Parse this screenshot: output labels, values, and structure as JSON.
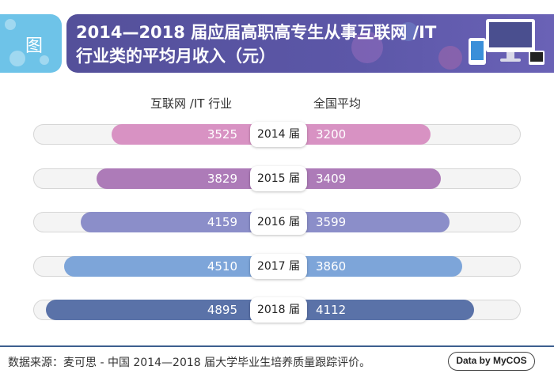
{
  "header": {
    "tag": "图",
    "title_line1": "2014—2018 届应届高职高专生从事互联网 /IT",
    "title_line2": "行业类的平均月收入（元）"
  },
  "chart_data": {
    "type": "bar",
    "orientation": "horizontal-butterfly",
    "categories": [
      "2014 届",
      "2015 届",
      "2016 届",
      "2017 届",
      "2018 届"
    ],
    "series": [
      {
        "name": "互联网 /IT 行业",
        "values": [
          3525,
          3829,
          4159,
          4510,
          4895
        ]
      },
      {
        "name": "全国平均",
        "values": [
          3200,
          3409,
          3599,
          3860,
          4112
        ]
      }
    ],
    "colors": [
      "#d892c3",
      "#ad7bb8",
      "#8b8ec9",
      "#7da5d9",
      "#5a72a8"
    ],
    "xlim": [
      0,
      5000
    ],
    "legend": "top-center"
  },
  "footer": {
    "source": "数据来源：麦可思 - 中国 2014—2018 届大学毕业生培养质量跟踪评价。",
    "badge": "Data by MyCOS"
  }
}
